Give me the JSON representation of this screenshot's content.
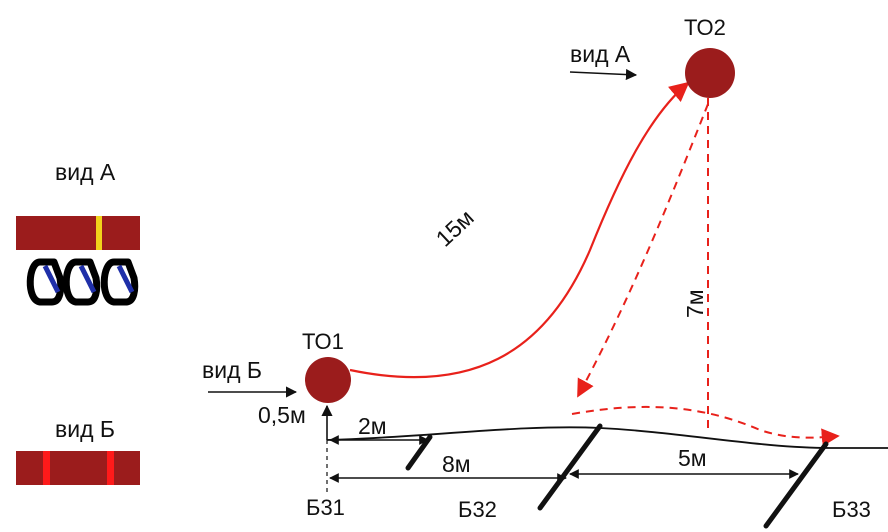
{
  "colors": {
    "node": "#9b1c1c",
    "rope_red": "#e8211b",
    "bar": "#9b1c1c",
    "bar_stripe_yellow": "#f2d21b",
    "bar_stripe_red": "#ff1a1a",
    "carabiner_outline": "#000000",
    "carabiner_gate": "#1f2fa8",
    "line": "#111111"
  },
  "nodes": {
    "to1": "ТО1",
    "to2": "ТО2"
  },
  "views": {
    "view_a_main": "вид А",
    "view_b_main": "вид Б",
    "legend_a": "вид А",
    "legend_b": "вид Б"
  },
  "distances": {
    "rope_15m": "15м",
    "drop_7m": "7м",
    "height_05m": "0,5м",
    "seg_2m": "2м",
    "seg_8m": "8м",
    "seg_5m": "5м"
  },
  "stakes": {
    "b31": "Б31",
    "b32": "Б32",
    "b33": "Б33"
  },
  "icons": {
    "carabiners": "carabiner-icon",
    "node_marker": "circle-node-icon"
  }
}
